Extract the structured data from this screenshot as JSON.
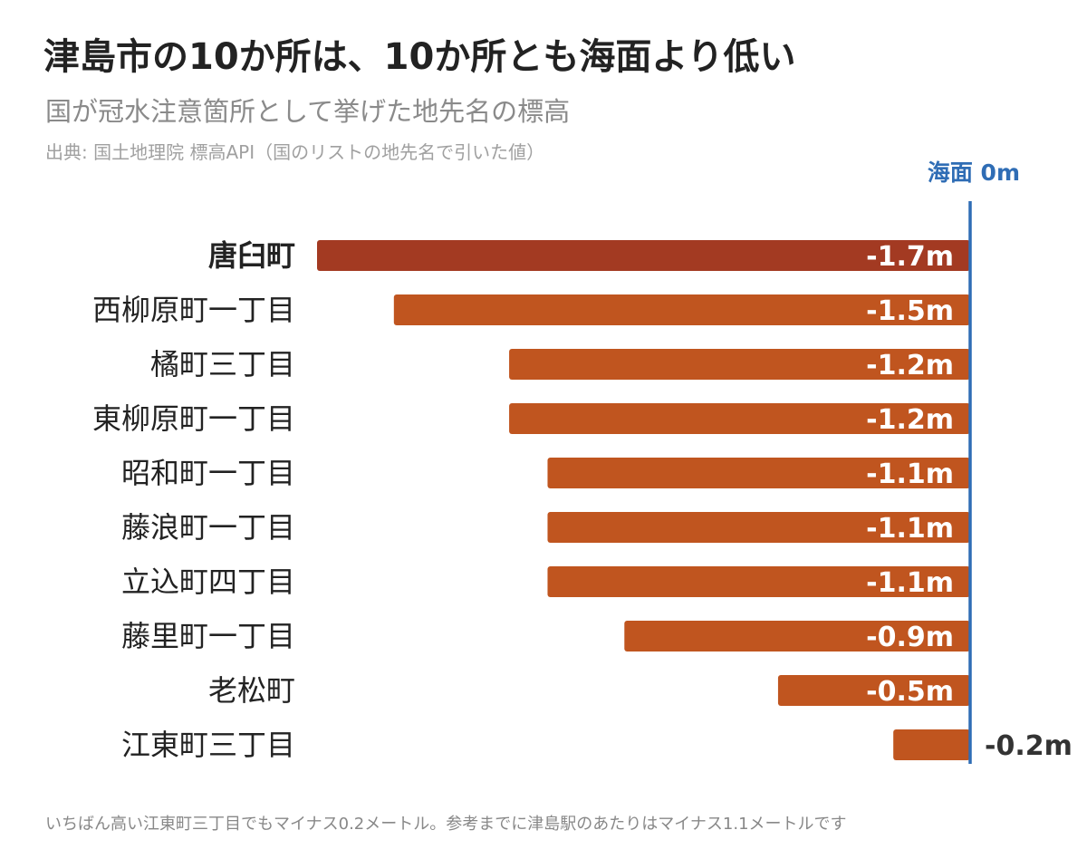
{
  "header": {
    "title": "津島市の10か所は、10か所とも海面より低い",
    "subtitle": "国が冠水注意箇所として挙げた地先名の標高",
    "source": "出典: 国土地理院 標高API（国のリストの地先名で引いた値）"
  },
  "footnote": "いちばん高い江東町三丁目でもマイナス0.2メートル。参考までに津島駅のあたりはマイナス1.1メートルです",
  "colors": {
    "bar": "#c0551f",
    "bar_highlight": "#a33a22",
    "reference_line": "#2f6db5"
  },
  "chart_data": {
    "type": "bar",
    "orientation": "horizontal",
    "categories": [
      "唐臼町",
      "西柳原町一丁目",
      "橘町三丁目",
      "東柳原町一丁目",
      "昭和町一丁目",
      "藤浪町一丁目",
      "立込町四丁目",
      "藤里町一丁目",
      "老松町",
      "江東町三丁目"
    ],
    "values": [
      -1.7,
      -1.5,
      -1.2,
      -1.2,
      -1.1,
      -1.1,
      -1.1,
      -0.9,
      -0.5,
      -0.2
    ],
    "value_labels": [
      "-1.7m",
      "-1.5m",
      "-1.2m",
      "-1.2m",
      "-1.1m",
      "-1.1m",
      "-1.1m",
      "-0.9m",
      "-0.5m",
      "-0.2m"
    ],
    "highlight_index": 0,
    "xlim": [
      -1.7,
      0
    ],
    "reference_line": {
      "value": 0,
      "label": "海面 0m"
    },
    "grid": false
  }
}
